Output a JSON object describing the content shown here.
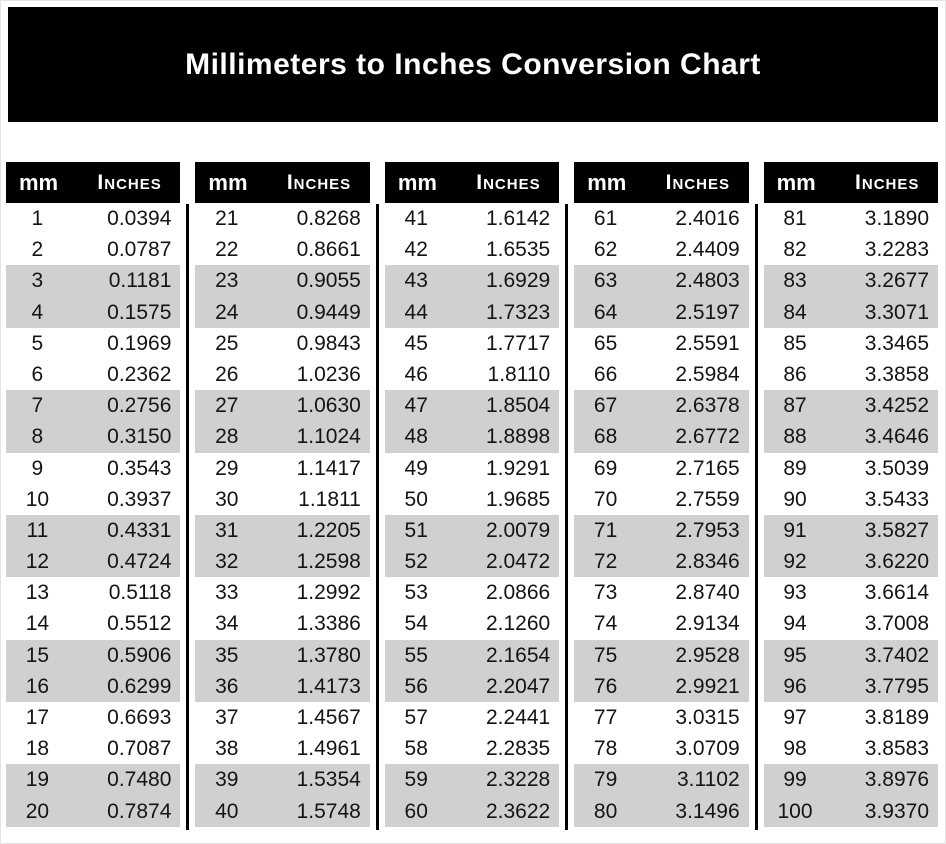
{
  "title": "Millimeters to Inches Conversion Chart",
  "columns": {
    "mm": "mm",
    "inches": "Inches"
  },
  "colors": {
    "banner_bg": "#010101",
    "header_bg": "#010101",
    "header_text": "#ffffff",
    "body_text": "#141414",
    "stripe": "#d0d0d0"
  },
  "chart_data": {
    "type": "table",
    "title": "Millimeters to Inches Conversion Chart",
    "columns": [
      "mm",
      "Inches"
    ],
    "layout": "5 side-by-side sub-tables of 20 rows, pairs of rows shaded gray",
    "tables": [
      {
        "mm_range": "1-20",
        "rows": [
          [
            1,
            "0.0394"
          ],
          [
            2,
            "0.0787"
          ],
          [
            3,
            "0.1181"
          ],
          [
            4,
            "0.1575"
          ],
          [
            5,
            "0.1969"
          ],
          [
            6,
            "0.2362"
          ],
          [
            7,
            "0.2756"
          ],
          [
            8,
            "0.3150"
          ],
          [
            9,
            "0.3543"
          ],
          [
            10,
            "0.3937"
          ],
          [
            11,
            "0.4331"
          ],
          [
            12,
            "0.4724"
          ],
          [
            13,
            "0.5118"
          ],
          [
            14,
            "0.5512"
          ],
          [
            15,
            "0.5906"
          ],
          [
            16,
            "0.6299"
          ],
          [
            17,
            "0.6693"
          ],
          [
            18,
            "0.7087"
          ],
          [
            19,
            "0.7480"
          ],
          [
            20,
            "0.7874"
          ]
        ]
      },
      {
        "mm_range": "21-40",
        "rows": [
          [
            21,
            "0.8268"
          ],
          [
            22,
            "0.8661"
          ],
          [
            23,
            "0.9055"
          ],
          [
            24,
            "0.9449"
          ],
          [
            25,
            "0.9843"
          ],
          [
            26,
            "1.0236"
          ],
          [
            27,
            "1.0630"
          ],
          [
            28,
            "1.1024"
          ],
          [
            29,
            "1.1417"
          ],
          [
            30,
            "1.1811"
          ],
          [
            31,
            "1.2205"
          ],
          [
            32,
            "1.2598"
          ],
          [
            33,
            "1.2992"
          ],
          [
            34,
            "1.3386"
          ],
          [
            35,
            "1.3780"
          ],
          [
            36,
            "1.4173"
          ],
          [
            37,
            "1.4567"
          ],
          [
            38,
            "1.4961"
          ],
          [
            39,
            "1.5354"
          ],
          [
            40,
            "1.5748"
          ]
        ]
      },
      {
        "mm_range": "41-60",
        "rows": [
          [
            41,
            "1.6142"
          ],
          [
            42,
            "1.6535"
          ],
          [
            43,
            "1.6929"
          ],
          [
            44,
            "1.7323"
          ],
          [
            45,
            "1.7717"
          ],
          [
            46,
            "1.8110"
          ],
          [
            47,
            "1.8504"
          ],
          [
            48,
            "1.8898"
          ],
          [
            49,
            "1.9291"
          ],
          [
            50,
            "1.9685"
          ],
          [
            51,
            "2.0079"
          ],
          [
            52,
            "2.0472"
          ],
          [
            53,
            "2.0866"
          ],
          [
            54,
            "2.1260"
          ],
          [
            55,
            "2.1654"
          ],
          [
            56,
            "2.2047"
          ],
          [
            57,
            "2.2441"
          ],
          [
            58,
            "2.2835"
          ],
          [
            59,
            "2.3228"
          ],
          [
            60,
            "2.3622"
          ]
        ]
      },
      {
        "mm_range": "61-80",
        "rows": [
          [
            61,
            "2.4016"
          ],
          [
            62,
            "2.4409"
          ],
          [
            63,
            "2.4803"
          ],
          [
            64,
            "2.5197"
          ],
          [
            65,
            "2.5591"
          ],
          [
            66,
            "2.5984"
          ],
          [
            67,
            "2.6378"
          ],
          [
            68,
            "2.6772"
          ],
          [
            69,
            "2.7165"
          ],
          [
            70,
            "2.7559"
          ],
          [
            71,
            "2.7953"
          ],
          [
            72,
            "2.8346"
          ],
          [
            73,
            "2.8740"
          ],
          [
            74,
            "2.9134"
          ],
          [
            75,
            "2.9528"
          ],
          [
            76,
            "2.9921"
          ],
          [
            77,
            "3.0315"
          ],
          [
            78,
            "3.0709"
          ],
          [
            79,
            "3.1102"
          ],
          [
            80,
            "3.1496"
          ]
        ]
      },
      {
        "mm_range": "81-100",
        "rows": [
          [
            81,
            "3.1890"
          ],
          [
            82,
            "3.2283"
          ],
          [
            83,
            "3.2677"
          ],
          [
            84,
            "3.3071"
          ],
          [
            85,
            "3.3465"
          ],
          [
            86,
            "3.3858"
          ],
          [
            87,
            "3.4252"
          ],
          [
            88,
            "3.4646"
          ],
          [
            89,
            "3.5039"
          ],
          [
            90,
            "3.5433"
          ],
          [
            91,
            "3.5827"
          ],
          [
            92,
            "3.6220"
          ],
          [
            93,
            "3.6614"
          ],
          [
            94,
            "3.7008"
          ],
          [
            95,
            "3.7402"
          ],
          [
            96,
            "3.7795"
          ],
          [
            97,
            "3.8189"
          ],
          [
            98,
            "3.8583"
          ],
          [
            99,
            "3.8976"
          ],
          [
            100,
            "3.9370"
          ]
        ]
      }
    ]
  }
}
